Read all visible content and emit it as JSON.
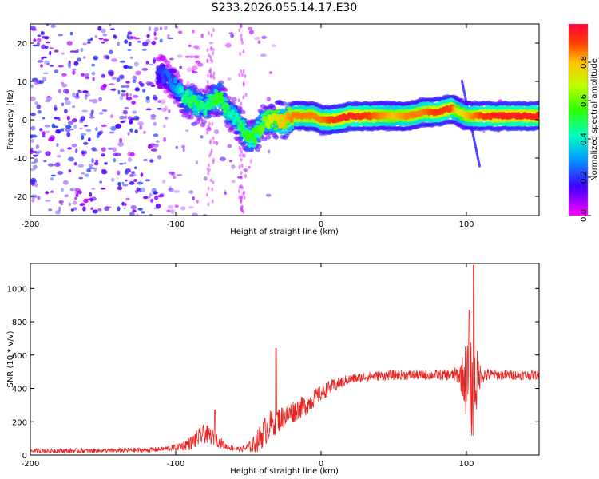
{
  "title": "S233.2026.055.14.17.E30",
  "colors": {
    "signal": "#e8221e",
    "axis": "#000000"
  },
  "chart_data": [
    {
      "type": "heatmap",
      "name": "spectrogram",
      "xlabel": "Height of straight line (km)",
      "ylabel": "Frequency (Hz)",
      "xlim": [
        -200,
        150
      ],
      "ylim": [
        -25,
        25
      ],
      "xticks": [
        -200,
        -100,
        0,
        100
      ],
      "xtick_labels": [
        "-200",
        "-100",
        "0",
        "100"
      ],
      "yticks": [
        -20,
        -10,
        0,
        10,
        20
      ],
      "ytick_labels": [
        "-20",
        "-10",
        "0",
        "10",
        "20"
      ],
      "colorbar": {
        "label": "Normalized spectral amplitude",
        "range": [
          0,
          1
        ],
        "ticks": [
          0,
          0.2,
          0.4,
          0.6,
          0.8
        ],
        "tick_labels": [
          "0.0",
          "0.2",
          "0.4",
          "0.6",
          "0.8"
        ]
      },
      "ridge": {
        "x": [
          -110,
          -105,
          -100,
          -95,
          -90,
          -85,
          -80,
          -75,
          -70,
          -65,
          -60,
          -55,
          -50,
          -45,
          -40,
          -35,
          -30,
          -25,
          -20,
          -15,
          -10,
          -5,
          0,
          10,
          20,
          30,
          40,
          50,
          60,
          70,
          80,
          90,
          95,
          100,
          110,
          120,
          130,
          140,
          150
        ],
        "freq": [
          12,
          11,
          9,
          6,
          5,
          4,
          3,
          5,
          6,
          3,
          1,
          -2,
          -5,
          -4,
          -1,
          0,
          0,
          0,
          1,
          1,
          1,
          1,
          0,
          0,
          1,
          1,
          1,
          1,
          1,
          2,
          2,
          3,
          2,
          1,
          1,
          1,
          1,
          1,
          1
        ],
        "amp": [
          0.2,
          0.25,
          0.3,
          0.45,
          0.5,
          0.5,
          0.45,
          0.5,
          0.55,
          0.5,
          0.4,
          0.5,
          0.55,
          0.55,
          0.6,
          0.7,
          0.75,
          0.8,
          0.85,
          0.85,
          0.85,
          0.85,
          0.85,
          0.92,
          0.95,
          0.92,
          0.85,
          0.8,
          0.85,
          0.85,
          0.92,
          0.9,
          0.7,
          0.8,
          0.9,
          0.95,
          0.95,
          0.95,
          0.95
        ]
      }
    },
    {
      "type": "line",
      "name": "snr",
      "xlabel": "Height of straight line (km)",
      "ylabel": "SNR (10 * v/v)",
      "xlim": [
        -200,
        150
      ],
      "ylim": [
        0,
        1150
      ],
      "xticks": [
        -200,
        -100,
        0,
        100
      ],
      "xtick_labels": [
        "-200",
        "-100",
        "0",
        "100"
      ],
      "yticks": [
        0,
        200,
        400,
        600,
        800,
        1000
      ],
      "ytick_labels": [
        "0",
        "200",
        "400",
        "600",
        "800",
        "1000"
      ],
      "envelope": {
        "x": [
          -200,
          -150,
          -120,
          -110,
          -100,
          -90,
          -85,
          -80,
          -75,
          -70,
          -65,
          -60,
          -55,
          -50,
          -45,
          -40,
          -35,
          -30,
          -25,
          -20,
          -15,
          -10,
          -5,
          0,
          5,
          10,
          15,
          20,
          25,
          30,
          40,
          50,
          60,
          70,
          80,
          90,
          95,
          98,
          100,
          102,
          104,
          106,
          108,
          110,
          120,
          130,
          140,
          150
        ],
        "mean": [
          25,
          25,
          30,
          35,
          45,
          70,
          100,
          130,
          110,
          80,
          50,
          40,
          35,
          45,
          70,
          130,
          180,
          210,
          230,
          260,
          280,
          300,
          340,
          370,
          400,
          420,
          440,
          455,
          460,
          470,
          475,
          480,
          480,
          480,
          480,
          480,
          480,
          470,
          460,
          420,
          380,
          420,
          470,
          480,
          480,
          480,
          480,
          480
        ],
        "noise": [
          15,
          15,
          15,
          15,
          20,
          40,
          55,
          60,
          50,
          35,
          20,
          15,
          15,
          30,
          60,
          90,
          90,
          80,
          70,
          70,
          65,
          60,
          55,
          50,
          45,
          40,
          35,
          30,
          30,
          30,
          30,
          30,
          30,
          30,
          30,
          35,
          60,
          150,
          250,
          300,
          300,
          250,
          150,
          50,
          30,
          30,
          30,
          30
        ]
      },
      "peaks": [
        {
          "x": -73,
          "y": 270
        },
        {
          "x": -31,
          "y": 640
        },
        {
          "x": 102,
          "y": 870
        },
        {
          "x": 105,
          "y": 1140
        }
      ]
    }
  ]
}
